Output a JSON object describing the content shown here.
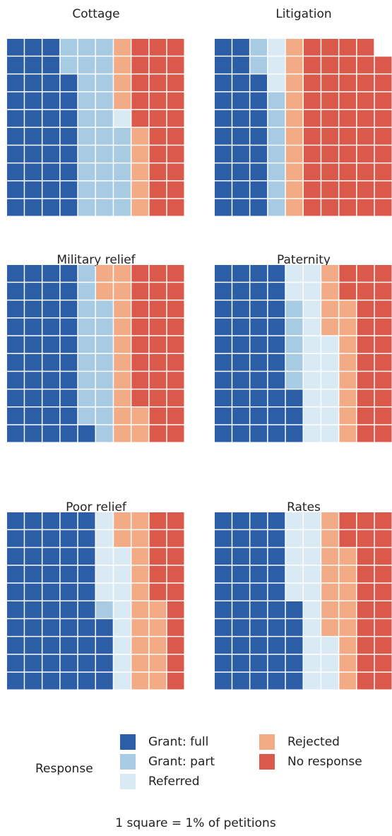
{
  "chart_data": {
    "type": "waffle",
    "series": [
      {
        "name": "Grant: full",
        "color": "#2b5ea7"
      },
      {
        "name": "Grant: part",
        "color": "#a8cbe4"
      },
      {
        "name": "Referred",
        "color": "#d9eaf4"
      },
      {
        "name": "Rejected",
        "color": "#f3ab85"
      },
      {
        "name": "No response",
        "color": "#db594a"
      }
    ],
    "panels": [
      {
        "title": "Cottage",
        "values": [
          38,
          27,
          1,
          9,
          25
        ]
      },
      {
        "title": "Litigation",
        "values": [
          28,
          9,
          3,
          10,
          49
        ]
      },
      {
        "title": "Military relief",
        "values": [
          41,
          17,
          0,
          14,
          28
        ]
      },
      {
        "title": "Paternity",
        "values": [
          43,
          5,
          18,
          12,
          22
        ]
      },
      {
        "title": "Poor relief",
        "values": [
          54,
          1,
          13,
          17,
          15
        ]
      },
      {
        "title": "Rates",
        "values": [
          45,
          0,
          18,
          15,
          22
        ]
      }
    ],
    "legend_title": "Response",
    "note": "1 square = 1% of petitions"
  }
}
